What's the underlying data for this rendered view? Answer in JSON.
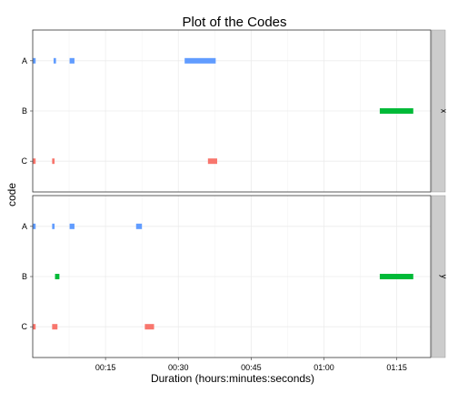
{
  "chart_data": {
    "type": "bar",
    "title": "Plot of the Codes",
    "xlabel": "Duration (hours:minutes:seconds)",
    "ylabel": "code",
    "x_unit": "minutes",
    "xlim": [
      0,
      82
    ],
    "x_ticks": [
      {
        "value": 15,
        "label": "00:15"
      },
      {
        "value": 30,
        "label": "00:30"
      },
      {
        "value": 45,
        "label": "00:45"
      },
      {
        "value": 60,
        "label": "01:00"
      },
      {
        "value": 75,
        "label": "01:15"
      }
    ],
    "codes": [
      "A",
      "B",
      "C"
    ],
    "colors": {
      "A": "#619CFF",
      "B": "#00BA38",
      "C": "#F8766D"
    },
    "grid": true,
    "panels": [
      {
        "strip": "x",
        "segments": [
          {
            "code": "A",
            "start": 0.0,
            "end": 0.6
          },
          {
            "code": "A",
            "start": 4.3,
            "end": 4.8
          },
          {
            "code": "A",
            "start": 7.6,
            "end": 8.6
          },
          {
            "code": "A",
            "start": 31.3,
            "end": 37.7
          },
          {
            "code": "B",
            "start": 71.5,
            "end": 78.4
          },
          {
            "code": "C",
            "start": 0.0,
            "end": 0.6
          },
          {
            "code": "C",
            "start": 4.0,
            "end": 4.5
          },
          {
            "code": "C",
            "start": 36.1,
            "end": 38.0
          }
        ]
      },
      {
        "strip": "y",
        "segments": [
          {
            "code": "A",
            "start": 0.0,
            "end": 0.6
          },
          {
            "code": "A",
            "start": 4.0,
            "end": 4.5
          },
          {
            "code": "A",
            "start": 7.6,
            "end": 8.6
          },
          {
            "code": "A",
            "start": 21.3,
            "end": 22.5
          },
          {
            "code": "B",
            "start": 4.6,
            "end": 5.5
          },
          {
            "code": "B",
            "start": 71.5,
            "end": 78.4
          },
          {
            "code": "C",
            "start": 0.0,
            "end": 0.6
          },
          {
            "code": "C",
            "start": 4.0,
            "end": 5.1
          },
          {
            "code": "C",
            "start": 23.1,
            "end": 25.0
          }
        ]
      }
    ]
  }
}
